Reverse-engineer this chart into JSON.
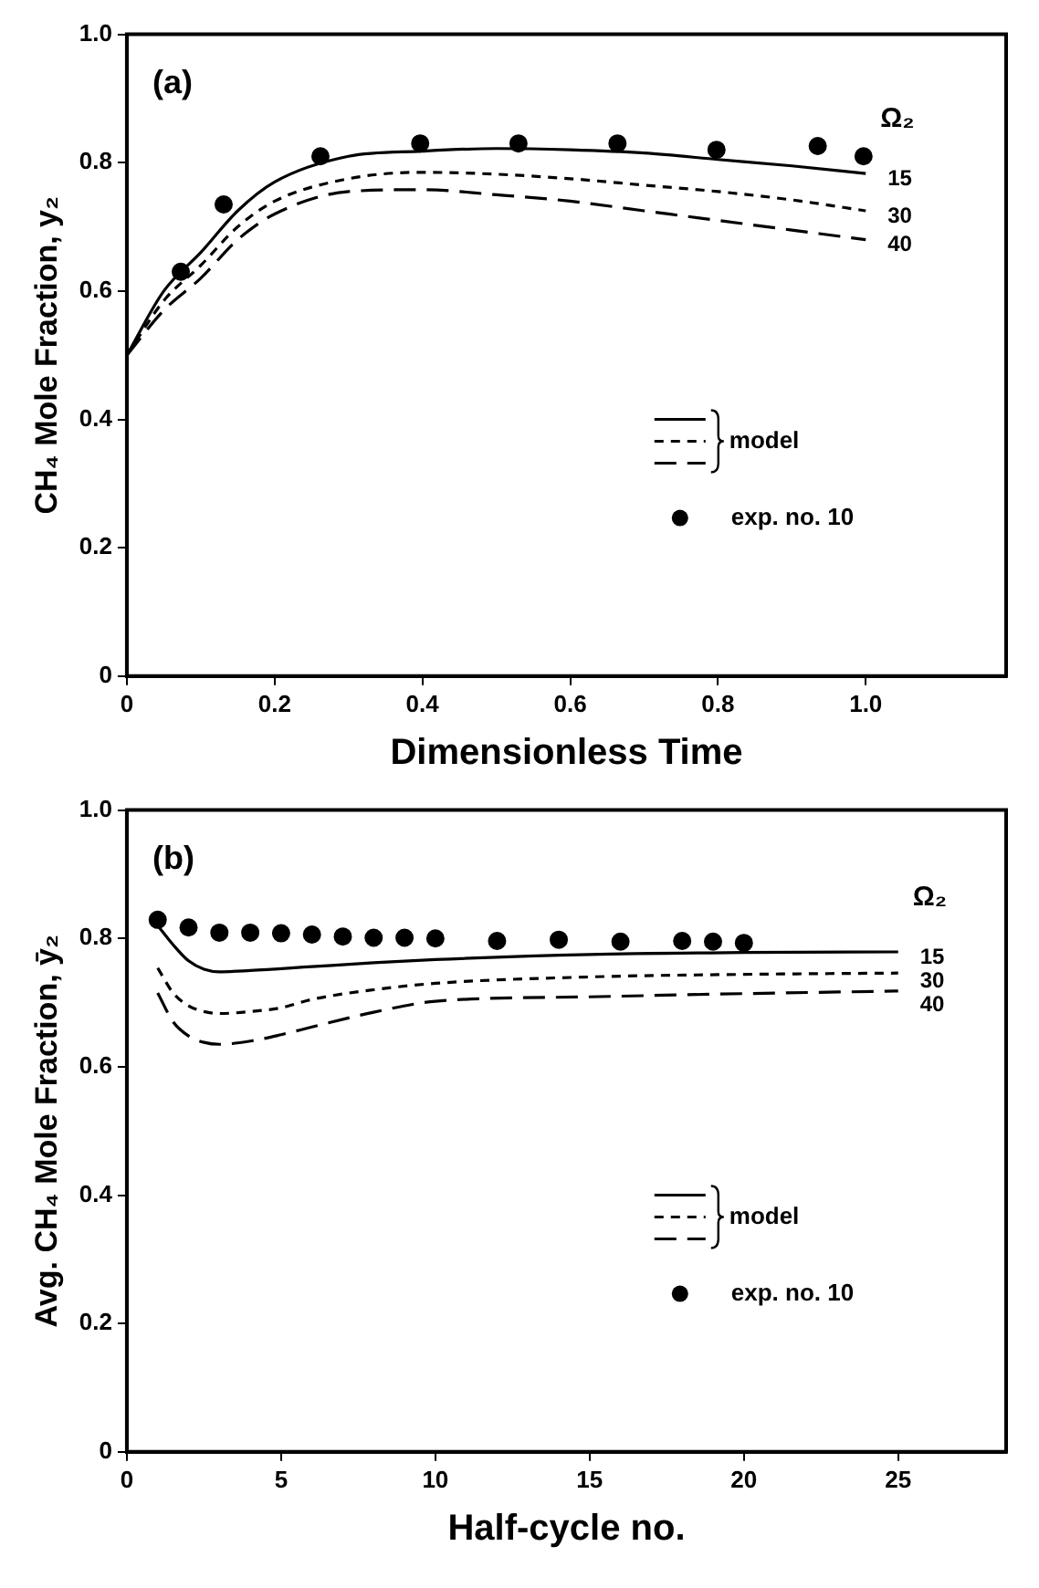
{
  "chart_data": [
    {
      "type": "line",
      "xlabel": "Dimensionless Time",
      "ylabel": "CH₄ Mole Fraction, y₂",
      "annotations": [
        "(a)",
        "Ω₂",
        "model"
      ],
      "xlim": [
        0,
        1.19
      ],
      "xticks": [
        0,
        0.2,
        0.4,
        0.6,
        0.8,
        {
          "value": 1,
          "label": "1.0"
        }
      ],
      "ylim": [
        0,
        1
      ],
      "yticks": [
        0,
        0.2,
        0.4,
        0.6,
        0.8,
        {
          "value": 1,
          "label": "1.0"
        }
      ],
      "grid": false,
      "legend": "bottom right",
      "series": [
        {
          "name": "15",
          "color": "#000000",
          "line_style": "solid",
          "x": [
            0,
            0.05,
            0.1,
            0.15,
            0.2,
            0.3,
            0.4,
            0.5,
            0.6,
            0.7,
            0.8,
            0.9,
            1.0
          ],
          "values": [
            0.5,
            0.6,
            0.66,
            0.725,
            0.77,
            0.81,
            0.818,
            0.822,
            0.82,
            0.815,
            0.805,
            0.795,
            0.783
          ]
        },
        {
          "name": "30",
          "color": "#000000",
          "line_style": "dashed",
          "x": [
            0,
            0.05,
            0.1,
            0.15,
            0.2,
            0.3,
            0.4,
            0.5,
            0.6,
            0.7,
            0.8,
            0.9,
            1.0
          ],
          "values": [
            0.5,
            0.585,
            0.64,
            0.7,
            0.74,
            0.775,
            0.785,
            0.782,
            0.775,
            0.765,
            0.755,
            0.742,
            0.725
          ]
        },
        {
          "name": "40",
          "color": "#000000",
          "line_style": "dashed",
          "x": [
            0,
            0.05,
            0.1,
            0.15,
            0.2,
            0.3,
            0.4,
            0.5,
            0.6,
            0.7,
            0.8,
            0.9,
            1.0
          ],
          "values": [
            0.5,
            0.57,
            0.62,
            0.68,
            0.72,
            0.755,
            0.758,
            0.75,
            0.74,
            0.725,
            0.71,
            0.695,
            0.68
          ]
        },
        {
          "name": "exp. no. 10",
          "type": "scatter",
          "marker": "circle",
          "color": "#000000",
          "x": [
            0.073,
            0.131,
            0.262,
            0.397,
            0.53,
            0.664,
            0.798,
            0.935,
            0.997
          ],
          "values": [
            0.63,
            0.735,
            0.81,
            0.83,
            0.83,
            0.83,
            0.82,
            0.826,
            0.81
          ]
        }
      ]
    },
    {
      "type": "line",
      "xlabel": "Half-cycle no.",
      "ylabel": "Avg. CH₄ Mole Fraction, ȳ₂",
      "annotations": [
        "(b)",
        "Ω₂",
        "model"
      ],
      "xlim": [
        0,
        28.5
      ],
      "xticks": [
        0,
        5,
        10,
        15,
        20,
        25
      ],
      "ylim": [
        0,
        1
      ],
      "yticks": [
        0,
        0.2,
        0.4,
        0.6,
        0.8,
        {
          "value": 1,
          "label": "1.0"
        }
      ],
      "grid": false,
      "legend": "bottom right",
      "series": [
        {
          "name": "15",
          "color": "#000000",
          "line_style": "solid",
          "x": [
            1,
            1.5,
            2,
            2.5,
            3,
            4,
            6,
            8,
            10,
            15,
            20,
            25
          ],
          "values": [
            0.82,
            0.79,
            0.765,
            0.752,
            0.748,
            0.75,
            0.756,
            0.762,
            0.767,
            0.775,
            0.778,
            0.779
          ]
        },
        {
          "name": "30",
          "color": "#000000",
          "line_style": "dashed",
          "x": [
            1,
            1.5,
            2,
            2.5,
            3,
            4,
            5,
            6,
            8,
            10,
            15,
            20,
            25
          ],
          "values": [
            0.754,
            0.715,
            0.695,
            0.686,
            0.683,
            0.686,
            0.692,
            0.705,
            0.72,
            0.73,
            0.74,
            0.744,
            0.746
          ]
        },
        {
          "name": "40",
          "color": "#000000",
          "line_style": "dashed",
          "x": [
            1,
            1.5,
            2,
            2.5,
            3,
            4,
            5,
            6,
            8,
            10,
            15,
            20,
            25
          ],
          "values": [
            0.715,
            0.67,
            0.648,
            0.638,
            0.635,
            0.64,
            0.65,
            0.662,
            0.685,
            0.702,
            0.709,
            0.714,
            0.718
          ]
        },
        {
          "name": "exp. no. 10",
          "type": "scatter",
          "marker": "circle",
          "color": "#000000",
          "x": [
            1,
            2,
            3,
            4,
            5,
            6,
            7,
            8,
            9,
            10,
            12,
            14,
            16,
            18,
            19,
            20
          ],
          "values": [
            0.829,
            0.817,
            0.809,
            0.809,
            0.808,
            0.806,
            0.803,
            0.801,
            0.801,
            0.8,
            0.796,
            0.798,
            0.795,
            0.796,
            0.795,
            0.793
          ]
        }
      ]
    }
  ]
}
